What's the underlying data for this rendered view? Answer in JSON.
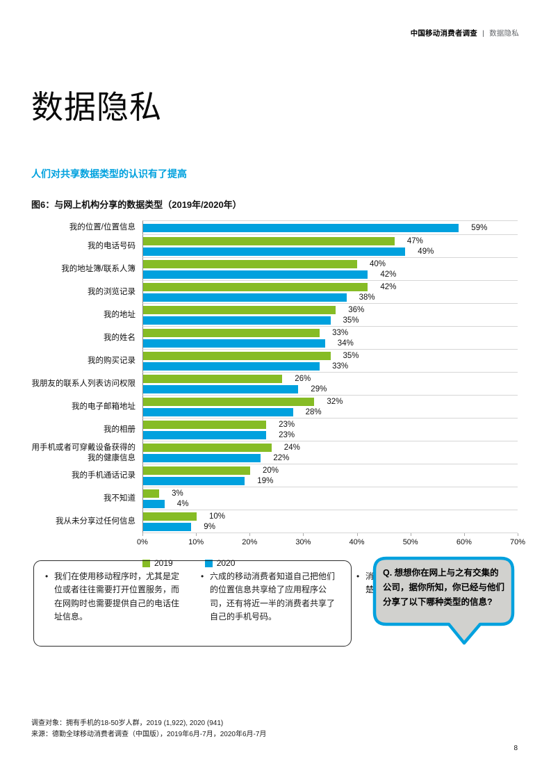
{
  "header": {
    "brand": "中国移动消费者调查",
    "separator": "|",
    "section": "数据隐私"
  },
  "page": {
    "title": "数据隐私",
    "subtitle": "人们对共享数据类型的认识有了提高",
    "figure_title": "图6：与网上机构分享的数据类型（2019年/2020年）",
    "page_number": "8"
  },
  "chart_data": {
    "type": "bar",
    "orientation": "horizontal",
    "title": "图6：与网上机构分享的数据类型（2019年/2020年）",
    "categories": [
      "我的位置/位置信息",
      "我的电话号码",
      "我的地址簿/联系人簿",
      "我的浏览记录",
      "我的地址",
      "我的姓名",
      "我的购买记录",
      "我朋友的联系人列表访问权限",
      "我的电子邮箱地址",
      "我的相册",
      "用手机或者可穿戴设备获得的我的健康信息",
      "我的手机通话记录",
      "我不知道",
      "我从未分享过任何信息"
    ],
    "series": [
      {
        "name": "2019",
        "color": "#86BC25",
        "values": [
          null,
          47,
          40,
          42,
          36,
          33,
          35,
          26,
          32,
          23,
          24,
          20,
          3,
          10
        ]
      },
      {
        "name": "2020",
        "color": "#00A1DE",
        "values": [
          59,
          49,
          42,
          38,
          35,
          34,
          33,
          29,
          28,
          23,
          22,
          19,
          4,
          9
        ]
      }
    ],
    "xlim": [
      0,
      70
    ],
    "x_ticks": [
      "0%",
      "10%",
      "20%",
      "30%",
      "40%",
      "50%",
      "60%",
      "70%"
    ],
    "value_suffix": "%",
    "legend_position": "bottom-left",
    "grid": "row-separator-lines"
  },
  "notes": {
    "bullets": [
      "我们在使用移动程序时，尤其是定位或者往往需要打开位置服务，而在网购时也需要提供自己的电话住址信息。",
      "六成的移动消费者知道自己把他们的位置信息共享给了应用程序公司，还有将近一半的消费者共享了自己的手机号码。",
      "消费者对自己共享的数据有比较清楚的认识。"
    ]
  },
  "question_bubble": {
    "text": "Q. 想想你在网上与之有交集的公司，据你所知，你已经与他们分享了以下哪种类型的信息?"
  },
  "footer": {
    "line1": "调查对象：拥有手机的18-50岁人群，2019 (1,922), 2020 (941)",
    "line2": "来源：德勤全球移动消费者调查（中国版），2019年6月-7月，2020年6月-7月"
  },
  "colors": {
    "accent_blue": "#00A1DE",
    "green_2019": "#86BC25",
    "bubble_fill": "#D1D1CE",
    "separator_grey": "#D6D6D6"
  }
}
